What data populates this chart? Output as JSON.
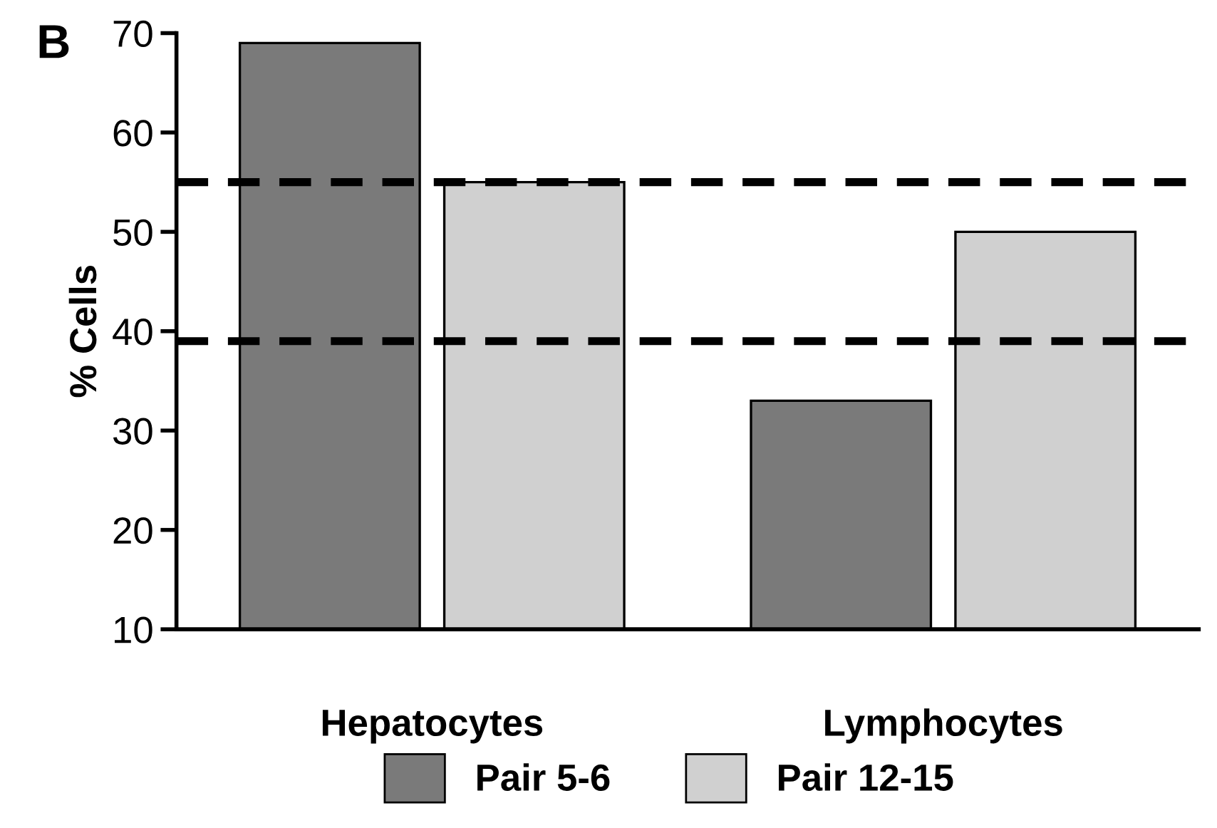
{
  "chart_data": {
    "type": "bar",
    "ylabel": "% Cells",
    "categories": [
      "Hepatocytes",
      "Lymphocytes"
    ],
    "series": [
      {
        "name": "Pair 5-6",
        "color": "#7a7a7a",
        "values": [
          69,
          33
        ]
      },
      {
        "name": "Pair 12-15",
        "color": "#d0d0d0",
        "values": [
          55,
          50
        ]
      }
    ],
    "ylim": [
      10,
      70
    ],
    "yticks": [
      10,
      20,
      30,
      40,
      50,
      60,
      70
    ],
    "ref_lines": [
      {
        "axis": "y",
        "value": 55,
        "color": "#000000",
        "line_style": "dashed"
      },
      {
        "axis": "y",
        "value": 39,
        "color": "#000000",
        "line_style": "dashed"
      }
    ],
    "annotations": [
      "B"
    ],
    "legend": "bottom",
    "grid": false
  }
}
